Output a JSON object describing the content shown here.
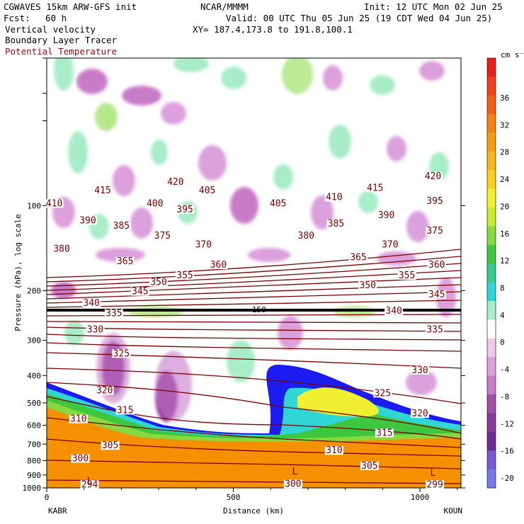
{
  "header": {
    "model": "CGWAVES 15km ARW-GFS init",
    "fcst_label": "Fcst:",
    "fcst_value": "60 h",
    "org": "NCAR/MMMM",
    "init": "Init: 12 UTC Mon 02 Jun 25",
    "valid": "Valid: 00 UTC Thu 05 Jun 25 (19 CDT Wed 04 Jun 25)",
    "xy": "XY= 187.4,173.8 to 191.8,100.1",
    "field1": "Vertical velocity",
    "field2": "Boundary Layer Tracer",
    "field3": "Potential Temperature"
  },
  "colors": {
    "theta": "#7a0000",
    "field3_text": "#8b1010",
    "tropopause": "#000000",
    "ground_orange": "#f59100",
    "tracer_blue": "#1c1cf0",
    "tracer_cyan": "#30d6d6",
    "tracer_green": "#3ec63e",
    "tracer_yellow": "#f0f030"
  },
  "chart_data": {
    "type": "heatmap",
    "title": "",
    "xlabel": "Distance (km)",
    "ylabel": "Pressure (hPa), log scale",
    "x_ticks": [
      "0",
      "500",
      "1000"
    ],
    "x_range": [
      0,
      1110
    ],
    "y_ticks": [
      100,
      200,
      300,
      400,
      500,
      600,
      700,
      800,
      900,
      1000
    ],
    "y_scale": "log",
    "y_range": [
      1000,
      30
    ],
    "endpoint_left": "KABR",
    "endpoint_right": "KOUN",
    "colorbar": {
      "unit": "cm s⁻¹",
      "labels": [
        36,
        32,
        28,
        24,
        20,
        16,
        12,
        8,
        4,
        0,
        -4,
        -8,
        -12,
        -16,
        -20
      ],
      "colors": [
        "#e8201c",
        "#f2401c",
        "#f26018",
        "#f58014",
        "#f59d10",
        "#f5b718",
        "#f5d020",
        "#f0f030",
        "#c7eb2e",
        "#86d93e",
        "#3ec63e",
        "#38c78c",
        "#30d6d6",
        "#a8ecc8",
        "#ffffff",
        "#f0c8f0",
        "#dca0dc",
        "#c87cc8",
        "#a050a8",
        "#8a3a9a",
        "#6e2c90",
        "#7a5ad8",
        "#7878ec"
      ]
    },
    "theta_contours": [
      {
        "label": "420",
        "x": 345,
        "p": 84,
        "color": "#7a0000"
      },
      {
        "label": "415",
        "x": 150,
        "p": 90,
        "color": "#7a0000"
      },
      {
        "label": "410",
        "x": 20,
        "p": 100,
        "color": "#7a0000"
      },
      {
        "label": "405",
        "x": 430,
        "p": 90,
        "color": "#7a0000"
      },
      {
        "label": "400",
        "x": 290,
        "p": 100,
        "color": "#7a0000"
      },
      {
        "label": "395",
        "x": 370,
        "p": 105,
        "color": "#7a0000"
      },
      {
        "label": "390",
        "x": 110,
        "p": 115,
        "color": "#7a0000"
      },
      {
        "label": "385",
        "x": 200,
        "p": 120,
        "color": "#7a0000"
      },
      {
        "label": "380",
        "x": 40,
        "p": 145,
        "color": "#7a0000"
      },
      {
        "label": "375",
        "x": 310,
        "p": 130,
        "color": "#7a0000"
      },
      {
        "label": "370",
        "x": 420,
        "p": 140,
        "color": "#7a0000"
      },
      {
        "label": "365",
        "x": 210,
        "p": 160,
        "color": "#7a0000"
      },
      {
        "label": "360",
        "x": 460,
        "p": 165,
        "color": "#7a0000"
      },
      {
        "label": "355",
        "x": 370,
        "p": 180,
        "color": "#7a0000"
      },
      {
        "label": "350",
        "x": 300,
        "p": 190,
        "color": "#7a0000"
      },
      {
        "label": "345",
        "x": 250,
        "p": 205,
        "color": "#7a0000"
      },
      {
        "label": "340",
        "x": 120,
        "p": 225,
        "color": "#7a0000"
      },
      {
        "label": "335",
        "x": 180,
        "p": 245,
        "color": "#7a0000"
      },
      {
        "label": "330",
        "x": 130,
        "p": 280,
        "color": "#7a0000"
      },
      {
        "label": "325",
        "x": 200,
        "p": 340,
        "color": "#7a0000"
      },
      {
        "label": "320",
        "x": 155,
        "p": 460,
        "color": "#7a0000"
      },
      {
        "label": "315",
        "x": 210,
        "p": 540,
        "color": "#7a0000"
      },
      {
        "label": "310",
        "x": 85,
        "p": 580,
        "color": "#7a0000"
      },
      {
        "label": "305",
        "x": 170,
        "p": 720,
        "color": "#7a0000"
      },
      {
        "label": "300",
        "x": 90,
        "p": 800,
        "color": "#7a0000"
      },
      {
        "label": "420",
        "x": 1035,
        "p": 80,
        "color": "#7a0000"
      },
      {
        "label": "415",
        "x": 880,
        "p": 88,
        "color": "#7a0000"
      },
      {
        "label": "410",
        "x": 770,
        "p": 95,
        "color": "#7a0000"
      },
      {
        "label": "405",
        "x": 620,
        "p": 100,
        "color": "#7a0000"
      },
      {
        "label": "395",
        "x": 1040,
        "p": 98,
        "color": "#7a0000"
      },
      {
        "label": "390",
        "x": 910,
        "p": 110,
        "color": "#7a0000"
      },
      {
        "label": "385",
        "x": 775,
        "p": 118,
        "color": "#7a0000"
      },
      {
        "label": "380",
        "x": 695,
        "p": 130,
        "color": "#7a0000"
      },
      {
        "label": "375",
        "x": 1040,
        "p": 125,
        "color": "#7a0000"
      },
      {
        "label": "370",
        "x": 920,
        "p": 140,
        "color": "#7a0000"
      },
      {
        "label": "365",
        "x": 835,
        "p": 155,
        "color": "#7a0000"
      },
      {
        "label": "360",
        "x": 1045,
        "p": 165,
        "color": "#7a0000"
      },
      {
        "label": "355",
        "x": 965,
        "p": 180,
        "color": "#7a0000"
      },
      {
        "label": "350",
        "x": 860,
        "p": 195,
        "color": "#7a0000"
      },
      {
        "label": "345",
        "x": 1045,
        "p": 210,
        "color": "#7a0000"
      },
      {
        "label": "340",
        "x": 930,
        "p": 240,
        "color": "#7a0000"
      },
      {
        "label": "335",
        "x": 1040,
        "p": 280,
        "color": "#7a0000"
      },
      {
        "label": "330",
        "x": 1000,
        "p": 390,
        "color": "#7a0000"
      },
      {
        "label": "325",
        "x": 900,
        "p": 470,
        "color": "#7a0000"
      },
      {
        "label": "320",
        "x": 1000,
        "p": 555,
        "color": "#7a0000"
      },
      {
        "label": "315",
        "x": 905,
        "p": 650,
        "color": "#7a0000"
      },
      {
        "label": "310",
        "x": 770,
        "p": 750,
        "color": "#7a0000"
      },
      {
        "label": "305",
        "x": 865,
        "p": 850,
        "color": "#7a0000"
      },
      {
        "label": "300",
        "x": 660,
        "p": 985,
        "color": "#7a0000"
      },
      {
        "label": "299",
        "x": 1040,
        "p": 990,
        "color": "#7a0000"
      },
      {
        "label": "294",
        "x": 115,
        "p": 990,
        "color": "#7a0000"
      }
    ],
    "tropopause_marker": "150",
    "low_markers": [
      {
        "label": "L",
        "x": 115,
        "p": 940
      },
      {
        "label": "L",
        "x": 665,
        "p": 870
      },
      {
        "label": "L",
        "x": 1035,
        "p": 880
      }
    ]
  }
}
